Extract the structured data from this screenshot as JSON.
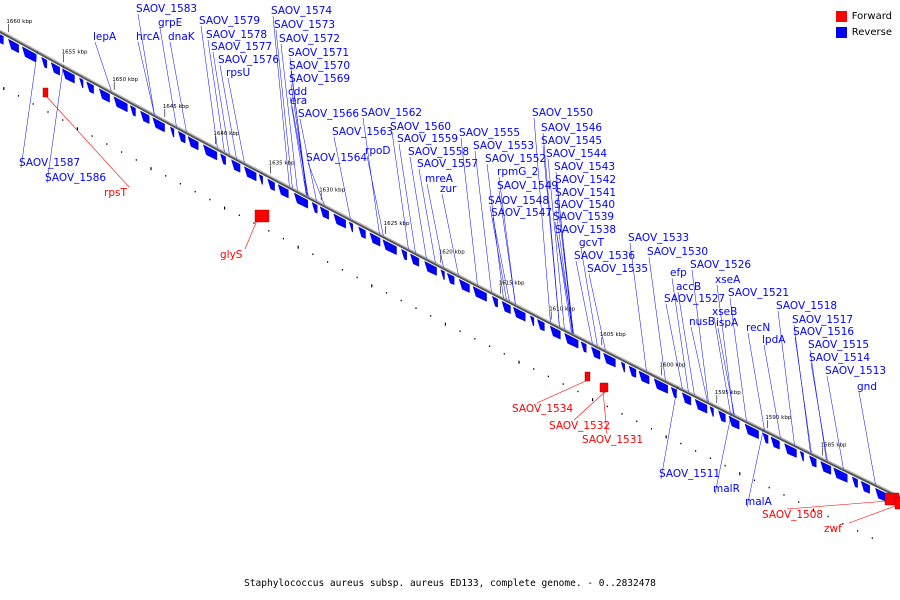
{
  "legend": {
    "forward": {
      "label": "Forward",
      "color": "#ff0000"
    },
    "reverse": {
      "label": "Reverse",
      "color": "#0000ff"
    }
  },
  "caption": "Staphylococcus aureus subsp. aureus ED133, complete genome. - 0..2832478",
  "ticks": [
    {
      "label": "1660 kbp",
      "kbp": 1660
    },
    {
      "label": "1655 kbp",
      "kbp": 1655
    },
    {
      "label": "1650 kbp",
      "kbp": 1650
    },
    {
      "label": "1645 kbp",
      "kbp": 1645
    },
    {
      "label": "1640 kbp",
      "kbp": 1640
    },
    {
      "label": "1635 kbp",
      "kbp": 1635
    },
    {
      "label": "1630 kbp",
      "kbp": 1630
    },
    {
      "label": "1625 kbp",
      "kbp": 1625
    },
    {
      "label": "1620 kbp",
      "kbp": 1620
    },
    {
      "label": "1615 kbp",
      "kbp": 1615
    },
    {
      "label": "1610 kbp",
      "kbp": 1610
    },
    {
      "label": "1605 kbp",
      "kbp": 1605
    },
    {
      "label": "1600 kbp",
      "kbp": 1600
    },
    {
      "label": "1595 kbp",
      "kbp": 1595
    },
    {
      "label": "1590 kbp",
      "kbp": 1590
    },
    {
      "label": "1585 kbp",
      "kbp": 1585
    }
  ],
  "reverse_genes": [
    "SAOV_1583",
    "grpE",
    "lepA",
    "hrcA",
    "dnaK",
    "SAOV_1579",
    "SAOV_1578",
    "SAOV_1574",
    "SAOV_1573",
    "SAOV_1577",
    "SAOV_1572",
    "SAOV_1576",
    "rpsU",
    "SAOV_1571",
    "SAOV_1570",
    "SAOV_1569",
    "cdd",
    "era",
    "SAOV_1566",
    "SAOV_1562",
    "SAOV_1563",
    "SAOV_1560",
    "rpoD",
    "SAOV_1559",
    "SAOV_1558",
    "SAOV_1564",
    "SAOV_1557",
    "mreA",
    "zur",
    "SAOV_1555",
    "SAOV_1553",
    "SAOV_1552",
    "rpmG_2",
    "SAOV_1550",
    "SAOV_1546",
    "SAOV_1545",
    "SAOV_1544",
    "SAOV_1543",
    "SAOV_1542",
    "SAOV_1541",
    "SAOV_1549",
    "SAOV_1548",
    "SAOV_1547",
    "SAOV_1540",
    "SAOV_1539",
    "SAOV_1538",
    "gcvT",
    "SAOV_1536",
    "SAOV_1535",
    "SAOV_1533",
    "SAOV_1530",
    "efp",
    "accB",
    "SAOV_1526",
    "xseA",
    "SAOV_1527",
    "xseB",
    "nusB",
    "ispA",
    "SAOV_1521",
    "recN",
    "lpdA",
    "SAOV_1518",
    "SAOV_1517",
    "SAOV_1516",
    "SAOV_1515",
    "SAOV_1514",
    "SAOV_1513",
    "gnd",
    "SAOV_1587",
    "SAOV_1586",
    "SAOV_1511",
    "malR",
    "malA"
  ],
  "forward_genes": [
    "rpsT",
    "glyS",
    "SAOV_1534",
    "SAOV_1532",
    "SAOV_1531",
    "SAOV_1508",
    "zwf"
  ]
}
